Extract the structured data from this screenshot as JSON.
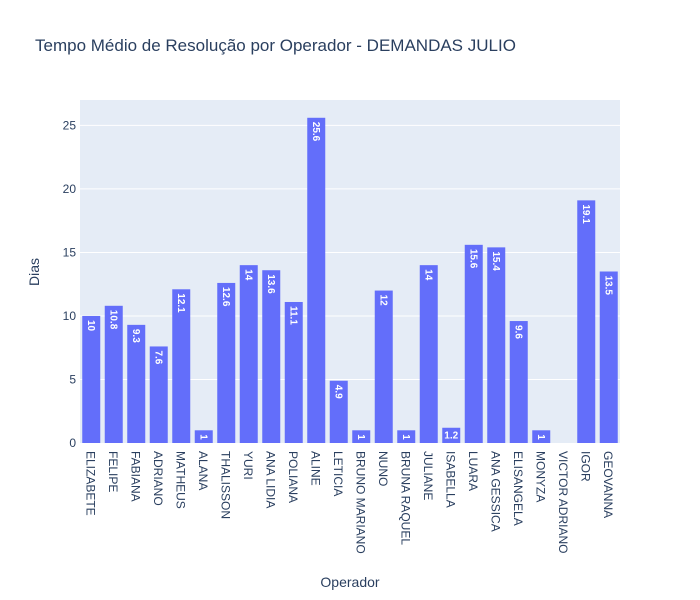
{
  "chart_data": {
    "type": "bar",
    "title": "Tempo Médio de Resolução por Operador - DEMANDAS JULIO",
    "xlabel": "Operador",
    "ylabel": "Dias",
    "ylim": [
      0,
      27
    ],
    "yticks": [
      0,
      5,
      10,
      15,
      20,
      25
    ],
    "grid": true,
    "bar_color": "#636efa",
    "categories": [
      "ELIZABETE",
      "FELIPE",
      "FABIANA",
      "ADRIANO",
      "MATHEUS",
      "ALANA",
      "THALISSON",
      "YURI",
      "ANA LIDIA",
      "POLIANA",
      "ALINE",
      "LETICIA",
      "BRUNO MARIANO",
      "NUNO",
      "BRUNA RAQUEL",
      "JULIANE",
      "ISABELLA",
      "LUARA",
      "ANA GESSICA",
      "ELISANGELA",
      "MONYZA",
      "VICTOR ADRIANO",
      "IGOR",
      "GEOVANNA"
    ],
    "values": [
      10,
      10.8,
      9.3,
      7.6,
      12.1,
      1,
      12.6,
      14,
      13.6,
      11.1,
      25.6,
      4.9,
      1,
      12,
      1,
      14,
      1.2,
      15.6,
      15.4,
      9.6,
      1,
      0,
      19.1,
      13.5
    ],
    "labels": [
      "10",
      "10.8",
      "9.3",
      "7.6",
      "12.1",
      "1",
      "12.6",
      "14",
      "13.6",
      "11.1",
      "25.6",
      "4.9",
      "1",
      "12",
      "1",
      "14",
      "1.2",
      "15.6",
      "15.4",
      "9.6",
      "1",
      "",
      "19.1",
      "13.5"
    ]
  }
}
